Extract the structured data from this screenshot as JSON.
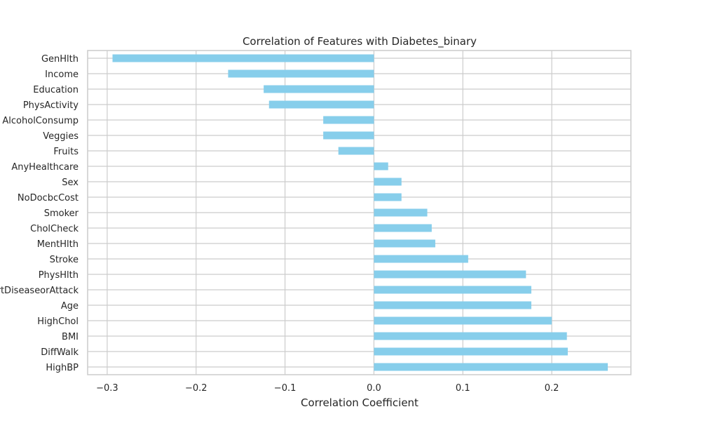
{
  "chart_data": {
    "type": "bar",
    "orientation": "horizontal",
    "title": "Correlation of Features with Diabetes_binary",
    "xlabel": "Correlation Coefficient",
    "ylabel": "",
    "xlim": [
      -0.322,
      0.289
    ],
    "xticks": [
      -0.3,
      -0.2,
      -0.1,
      0.0,
      0.1,
      0.2
    ],
    "xtick_labels": [
      "−0.3",
      "−0.2",
      "−0.1",
      "0.0",
      "0.1",
      "0.2"
    ],
    "grid": true,
    "bar_color": "#87ceeb",
    "categories": [
      "GenHlth",
      "Income",
      "Education",
      "PhysActivity",
      "AlcoholConsump",
      "Veggies",
      "Fruits",
      "AnyHealthcare",
      "Sex",
      "NoDocbcCost",
      "Smoker",
      "CholCheck",
      "MentHlth",
      "Stroke",
      "PhysHlth",
      "HeartDiseaseorAttack",
      "Age",
      "HighChol",
      "BMI",
      "DiffWalk",
      "HighBP"
    ],
    "values": [
      -0.294,
      -0.164,
      -0.124,
      -0.118,
      -0.057,
      -0.057,
      -0.04,
      0.016,
      0.031,
      0.031,
      0.06,
      0.065,
      0.069,
      0.106,
      0.171,
      0.177,
      0.177,
      0.2,
      0.217,
      0.218,
      0.263
    ]
  }
}
